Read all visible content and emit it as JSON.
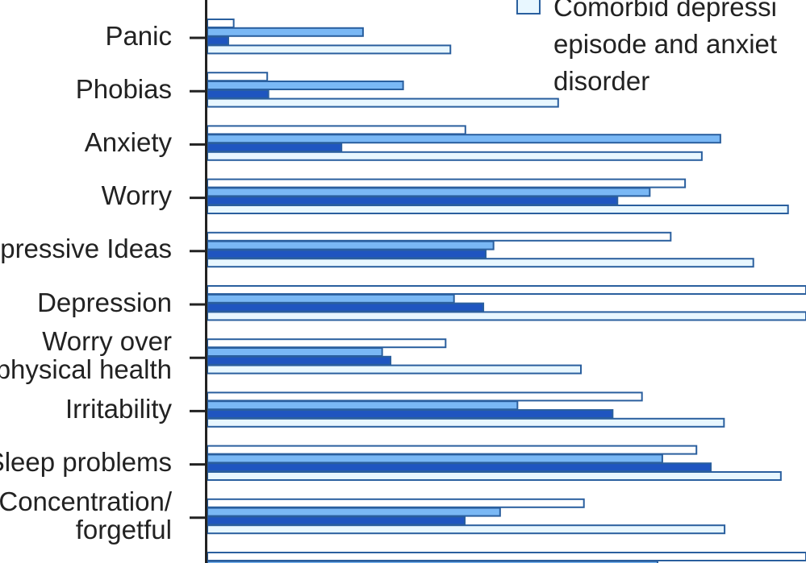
{
  "chart_data": {
    "type": "bar",
    "orientation": "horizontal",
    "categories": [
      "Panic",
      "Phobias",
      "Anxiety",
      "Worry",
      "Depressive Ideas",
      "Depression",
      "Worry over physical health",
      "Irritability",
      "Sleep problems",
      "Concentration/ forgetful",
      ""
    ],
    "category_lines": [
      [
        "Panic"
      ],
      [
        "Phobias"
      ],
      [
        "Anxiety"
      ],
      [
        "Worry"
      ],
      [
        "Depressive Ideas"
      ],
      [
        "Depression"
      ],
      [
        "Worry over",
        "physical health"
      ],
      [
        "Irritability"
      ],
      [
        "Sleep problems"
      ],
      [
        "Concentration/",
        "forgetful"
      ],
      []
    ],
    "series": [
      {
        "color": "#ffffff",
        "values": [
          4.4,
          10,
          43.1,
          79.8,
          77.4,
          100,
          39.8,
          72.6,
          81.7,
          62.9,
          100
        ]
      },
      {
        "color": "#7ab8f5",
        "values": [
          26,
          32.7,
          85.7,
          73.9,
          47.8,
          41.2,
          29.2,
          51.8,
          76,
          48.9,
          75.2
        ]
      },
      {
        "color": "#1f55c0",
        "values": [
          3.5,
          10.2,
          22.4,
          68.5,
          46.5,
          46.1,
          30.6,
          67.7,
          84.1,
          43,
          null
        ]
      },
      {
        "name": "Comorbid depressive episode and anxiety disorder",
        "color": "#e8f7ff",
        "values": [
          40.6,
          58.6,
          82.6,
          97,
          91.2,
          100,
          62.4,
          86.3,
          95.8,
          86.4,
          null
        ]
      }
    ],
    "xlim": [
      0,
      100
    ],
    "grid": false,
    "legend_position": "top-right",
    "legend_lines": [
      "Comorbid depressi",
      "episode and anxiet",
      "disorder"
    ]
  }
}
